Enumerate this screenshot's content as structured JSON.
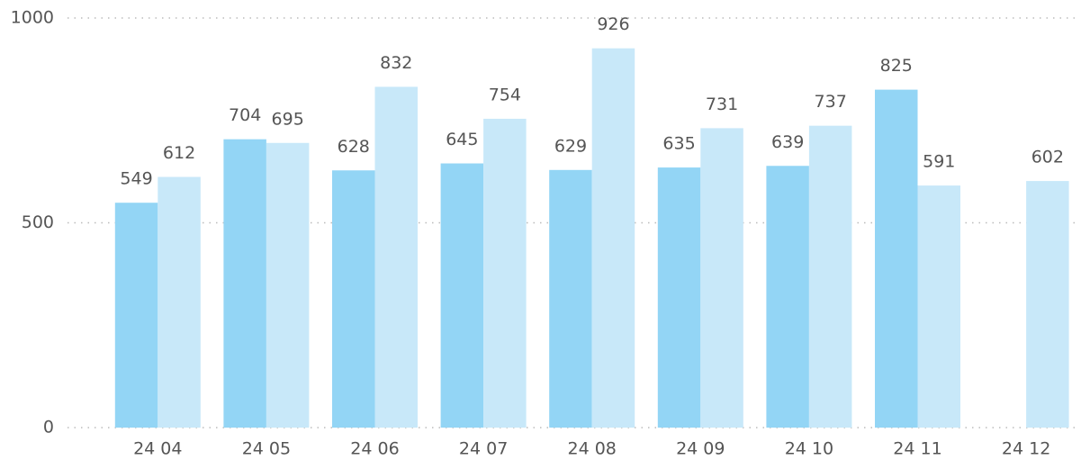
{
  "chart_data": {
    "type": "bar",
    "categories": [
      "24 04",
      "24 05",
      "24 06",
      "24 07",
      "24 08",
      "24 09",
      "24 10",
      "24 11",
      "24 12"
    ],
    "series": [
      {
        "color": "#93d5f5",
        "values": [
          549,
          704,
          628,
          645,
          629,
          635,
          639,
          825,
          null
        ]
      },
      {
        "color": "#c8e8f9",
        "values": [
          612,
          695,
          832,
          754,
          926,
          731,
          737,
          591,
          602
        ]
      }
    ],
    "ylim": [
      0,
      1000
    ],
    "yticks": [
      0,
      500,
      1000
    ],
    "grid": true
  }
}
